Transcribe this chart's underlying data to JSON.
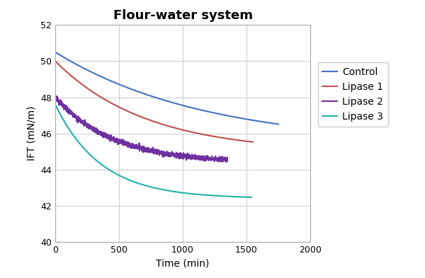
{
  "title": "Flour-water system",
  "xlabel": "Time (min)",
  "ylabel": "IFT (mN/m)",
  "xlim": [
    0,
    2000
  ],
  "ylim": [
    40,
    52
  ],
  "yticks": [
    40,
    42,
    44,
    46,
    48,
    50,
    52
  ],
  "xticks": [
    0,
    500,
    1000,
    1500,
    2000
  ],
  "series": [
    {
      "label": "Control",
      "color": "#4472C4",
      "end_x": 1750,
      "start_y": 50.5,
      "end_y": 45.35,
      "noise": 0.0,
      "k": 0.00085
    },
    {
      "label": "Lipase 1",
      "color": "#C0504D",
      "end_x": 1550,
      "start_y": 50.0,
      "end_y": 44.95,
      "noise": 0.0,
      "k": 0.0014
    },
    {
      "label": "Lipase 2",
      "color": "#7030A0",
      "end_x": 1350,
      "start_y": 48.0,
      "end_y": 44.35,
      "noise": 0.12,
      "k": 0.0022
    },
    {
      "label": "Lipase 3",
      "color": "#20B2AA",
      "end_x": 1540,
      "start_y": 47.6,
      "end_y": 42.4,
      "noise": 0.0,
      "k": 0.0028
    }
  ],
  "background_color": "#FFFFFF",
  "grid_color": "#D0D0D0",
  "title_fontsize": 13,
  "axis_label_fontsize": 10,
  "tick_fontsize": 9,
  "legend_fontsize": 10,
  "line_width": 1.5
}
